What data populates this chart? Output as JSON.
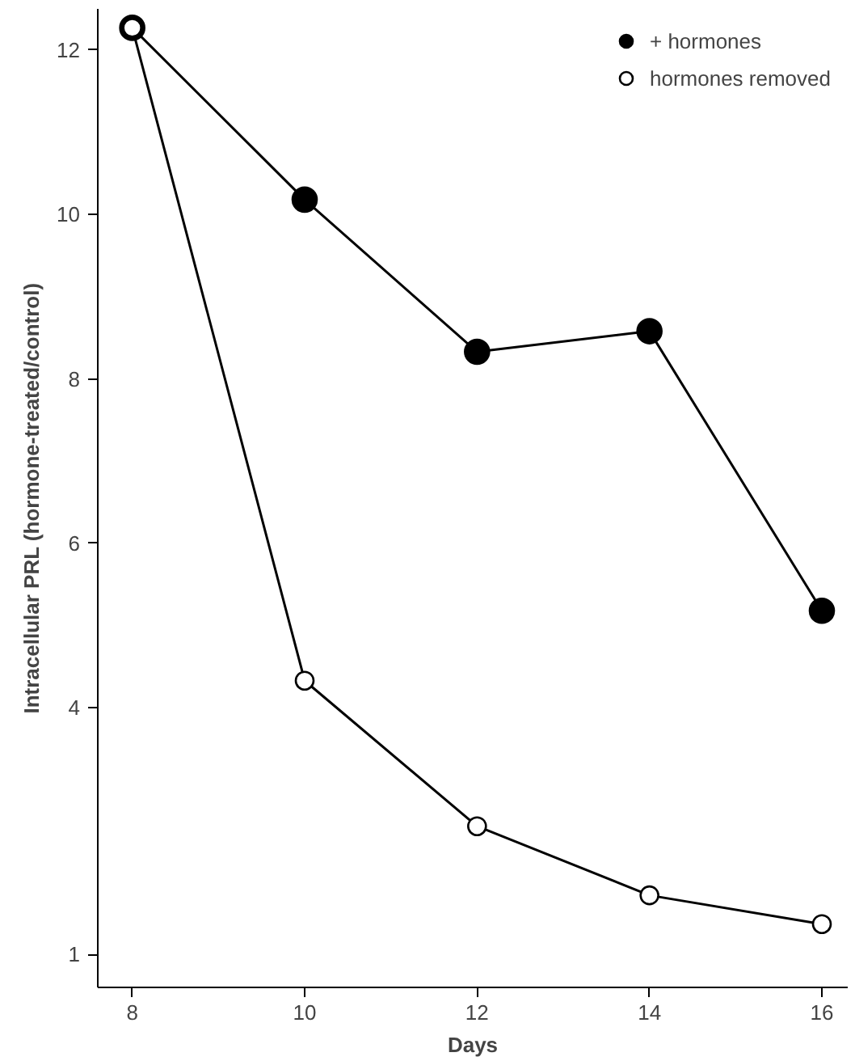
{
  "chart_data": {
    "type": "line",
    "xlabel": "Days",
    "ylabel": "Intracellular PRL (hormone-treated/control)",
    "x": [
      8,
      10,
      12,
      14,
      16
    ],
    "series": [
      {
        "name": "+ hormones",
        "color": "#000000",
        "values": [
          12.27,
          10.18,
          8.33,
          8.58,
          5.18
        ]
      },
      {
        "name": "hormones removed",
        "color": "#000000",
        "values": [
          12.27,
          4.33,
          2.56,
          1.72,
          1.37
        ]
      }
    ],
    "xlim": [
      7.6,
      16.3
    ],
    "xticks": [
      8,
      10,
      12,
      14,
      16
    ],
    "ylim": [
      0.6,
      12.5
    ],
    "yticks": [
      1,
      4,
      6,
      8,
      10,
      12
    ],
    "marker": "circle",
    "legend": "top right",
    "grid": false
  }
}
